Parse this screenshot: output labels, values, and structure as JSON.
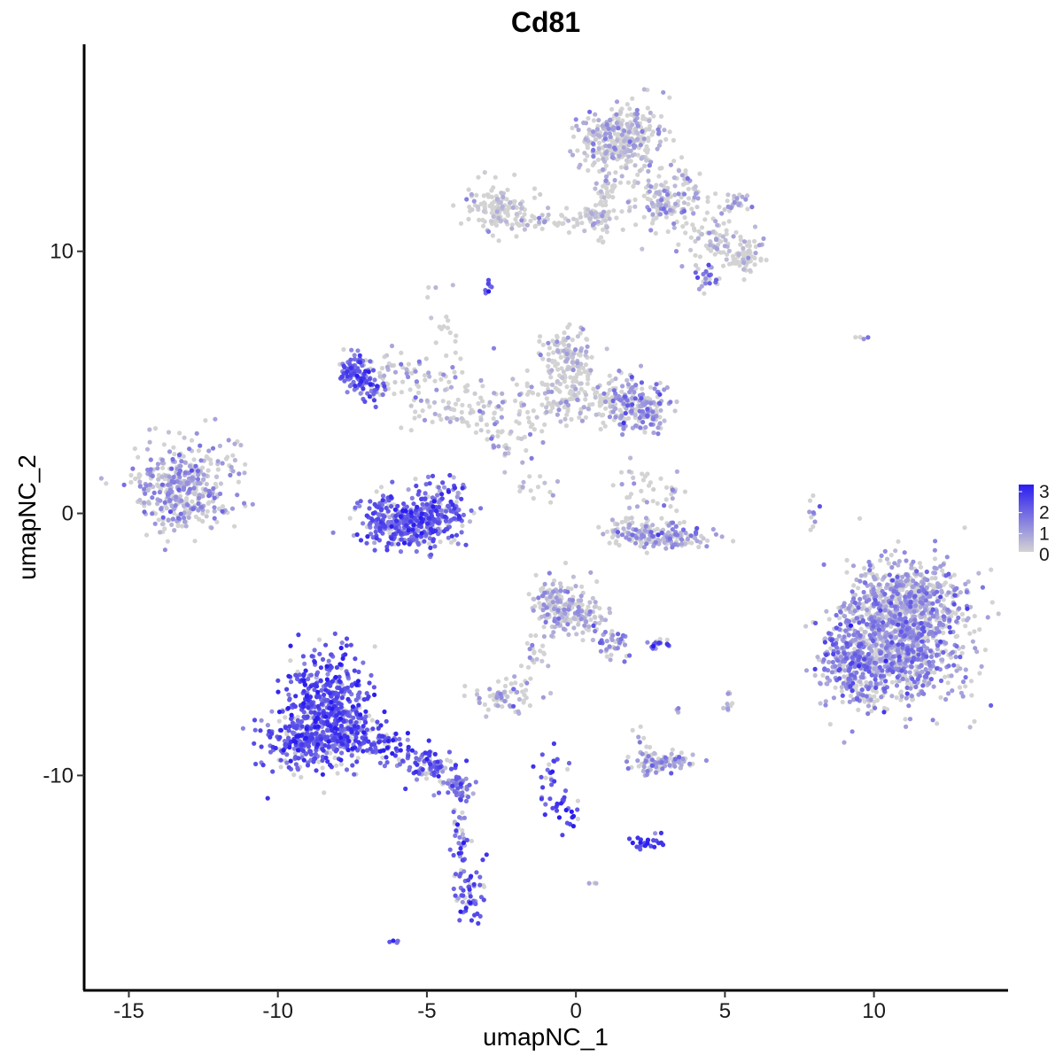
{
  "chart_data": {
    "type": "scatter",
    "title": "Cd81",
    "xlabel": "umapNC_1",
    "ylabel": "umapNC_2",
    "xlim": [
      -16.5,
      14.5
    ],
    "ylim": [
      -18.2,
      17.9
    ],
    "xticks": [
      -15,
      -10,
      -5,
      0,
      5,
      10
    ],
    "yticks": [
      -10,
      0,
      10
    ],
    "xtick_labels": [
      "-15",
      "-10",
      "-5",
      "0",
      "5",
      "10"
    ],
    "ytick_labels": [
      "-10",
      "0",
      "10"
    ],
    "grid": false,
    "legend": {
      "placement": "right",
      "type": "colorbar",
      "range": [
        0,
        3
      ],
      "ticks": [
        "3",
        "2",
        "1",
        "0"
      ]
    },
    "color_scale": {
      "low": "#d3d3d3",
      "high": "#2b1df0"
    },
    "clusters": [
      {
        "cx": -13.3,
        "cy": 1.0,
        "sx": 0.75,
        "sy": 0.8,
        "n": 380,
        "expr": 0.75
      },
      {
        "cx": -12.0,
        "cy": 1.6,
        "sx": 0.5,
        "sy": 0.8,
        "n": 40,
        "expr": 0.55
      },
      {
        "cx": -8.4,
        "cy": -7.2,
        "sx": 0.7,
        "sy": 1.0,
        "n": 420,
        "expr": 2.15
      },
      {
        "cx": -9.2,
        "cy": -8.8,
        "sx": 0.7,
        "sy": 0.5,
        "n": 220,
        "expr": 2.0
      },
      {
        "cx": -7.6,
        "cy": -8.3,
        "sx": 0.55,
        "sy": 0.55,
        "n": 130,
        "expr": 2.0
      },
      {
        "cx": -6.2,
        "cy": -8.9,
        "sx": 0.55,
        "sy": 0.25,
        "n": 60,
        "expr": 2.2
      },
      {
        "cx": -4.9,
        "cy": -9.6,
        "sx": 0.45,
        "sy": 0.3,
        "n": 90,
        "expr": 1.8
      },
      {
        "cx": -4.0,
        "cy": -10.4,
        "sx": 0.3,
        "sy": 0.25,
        "n": 45,
        "expr": 1.6
      },
      {
        "cx": -3.9,
        "cy": -12.2,
        "sx": 0.15,
        "sy": 0.9,
        "n": 40,
        "expr": 1.7
      },
      {
        "cx": -3.6,
        "cy": -14.6,
        "sx": 0.25,
        "sy": 0.5,
        "n": 55,
        "expr": 1.9
      },
      {
        "cx": -6.1,
        "cy": -16.3,
        "sx": 0.1,
        "sy": 0.06,
        "n": 5,
        "expr": 1.6
      },
      {
        "cx": -6.4,
        "cy": -0.2,
        "sx": 0.45,
        "sy": 0.55,
        "n": 130,
        "expr": 1.8
      },
      {
        "cx": -5.5,
        "cy": -0.4,
        "sx": 0.6,
        "sy": 0.45,
        "n": 220,
        "expr": 1.95
      },
      {
        "cx": -4.5,
        "cy": 0.1,
        "sx": 0.45,
        "sy": 0.6,
        "n": 150,
        "expr": 1.85
      },
      {
        "cx": -7.4,
        "cy": 5.4,
        "sx": 0.28,
        "sy": 0.35,
        "n": 90,
        "expr": 1.9
      },
      {
        "cx": -6.9,
        "cy": 4.7,
        "sx": 0.22,
        "sy": 0.3,
        "n": 40,
        "expr": 1.8
      },
      {
        "cx": -6.0,
        "cy": 5.5,
        "sx": 0.4,
        "sy": 0.35,
        "n": 30,
        "expr": 0.4
      },
      {
        "cx": -4.8,
        "cy": 4.5,
        "sx": 0.8,
        "sy": 0.8,
        "n": 50,
        "expr": 0.6
      },
      {
        "cx": -3.3,
        "cy": 4.0,
        "sx": 0.7,
        "sy": 0.5,
        "n": 60,
        "expr": 0.15
      },
      {
        "cx": -4.5,
        "cy": 6.6,
        "sx": 0.3,
        "sy": 0.9,
        "n": 25,
        "expr": 0.05
      },
      {
        "cx": -1.1,
        "cy": 4.3,
        "sx": 0.7,
        "sy": 0.5,
        "n": 80,
        "expr": 0.25
      },
      {
        "cx": -0.3,
        "cy": 5.9,
        "sx": 0.45,
        "sy": 0.55,
        "n": 120,
        "expr": 0.2
      },
      {
        "cx": 0.5,
        "cy": 4.4,
        "sx": 0.6,
        "sy": 0.5,
        "n": 90,
        "expr": 0.3
      },
      {
        "cx": 1.9,
        "cy": 4.2,
        "sx": 0.45,
        "sy": 0.5,
        "n": 140,
        "expr": 0.9
      },
      {
        "cx": 2.5,
        "cy": 3.8,
        "sx": 0.35,
        "sy": 0.35,
        "n": 50,
        "expr": 0.95
      },
      {
        "cx": -2.2,
        "cy": 2.6,
        "sx": 0.5,
        "sy": 0.4,
        "n": 30,
        "expr": 0.55
      },
      {
        "cx": -1.2,
        "cy": 1.0,
        "sx": 0.45,
        "sy": 0.35,
        "n": 15,
        "expr": 0.35
      },
      {
        "cx": -2.9,
        "cy": 8.6,
        "sx": 0.08,
        "sy": 0.15,
        "n": 8,
        "expr": 2.3
      },
      {
        "cx": -2.5,
        "cy": 11.6,
        "sx": 0.55,
        "sy": 0.5,
        "n": 130,
        "expr": 0.05
      },
      {
        "cx": -0.8,
        "cy": 11.2,
        "sx": 0.7,
        "sy": 0.2,
        "n": 40,
        "expr": 0.05
      },
      {
        "cx": 0.7,
        "cy": 11.2,
        "sx": 0.3,
        "sy": 0.35,
        "n": 60,
        "expr": 0.05
      },
      {
        "cx": 1.5,
        "cy": 14.3,
        "sx": 0.7,
        "sy": 0.6,
        "n": 330,
        "expr": 0.35
      },
      {
        "cx": 1.1,
        "cy": 12.4,
        "sx": 0.25,
        "sy": 0.6,
        "n": 50,
        "expr": 0.1
      },
      {
        "cx": 3.1,
        "cy": 12.0,
        "sx": 0.7,
        "sy": 0.6,
        "n": 160,
        "expr": 0.45
      },
      {
        "cx": 4.7,
        "cy": 10.4,
        "sx": 0.5,
        "sy": 0.5,
        "n": 70,
        "expr": 0.25
      },
      {
        "cx": 5.7,
        "cy": 9.8,
        "sx": 0.3,
        "sy": 0.3,
        "n": 60,
        "expr": 0.05
      },
      {
        "cx": 4.4,
        "cy": 9.0,
        "sx": 0.3,
        "sy": 0.25,
        "n": 25,
        "expr": 1.4
      },
      {
        "cx": 5.4,
        "cy": 11.8,
        "sx": 0.3,
        "sy": 0.15,
        "n": 25,
        "expr": 0.7
      },
      {
        "cx": 9.6,
        "cy": 6.7,
        "sx": 0.12,
        "sy": 0.06,
        "n": 4,
        "expr": 1.6
      },
      {
        "cx": 2.3,
        "cy": 1.2,
        "sx": 0.45,
        "sy": 0.4,
        "n": 25,
        "expr": 0.15
      },
      {
        "cx": 3.3,
        "cy": 0.8,
        "sx": 0.2,
        "sy": 0.35,
        "n": 15,
        "expr": 0.7
      },
      {
        "cx": 2.8,
        "cy": -0.9,
        "sx": 0.85,
        "sy": 0.25,
        "n": 160,
        "expr": 0.75
      },
      {
        "cx": 1.9,
        "cy": -0.4,
        "sx": 0.5,
        "sy": 0.2,
        "n": 30,
        "expr": 0.1
      },
      {
        "cx": 8.0,
        "cy": -0.1,
        "sx": 0.1,
        "sy": 0.4,
        "n": 10,
        "expr": 1.3
      },
      {
        "cx": 10.9,
        "cy": -4.7,
        "sx": 1.05,
        "sy": 1.25,
        "n": 1100,
        "expr": 0.95
      },
      {
        "cx": 9.3,
        "cy": -5.7,
        "sx": 0.55,
        "sy": 0.8,
        "n": 280,
        "expr": 1.25
      },
      {
        "cx": 11.4,
        "cy": -3.2,
        "sx": 0.7,
        "sy": 0.6,
        "n": 220,
        "expr": 0.6
      },
      {
        "cx": -0.7,
        "cy": -3.4,
        "sx": 0.45,
        "sy": 0.5,
        "n": 130,
        "expr": 0.7
      },
      {
        "cx": 0.2,
        "cy": -4.0,
        "sx": 0.5,
        "sy": 0.4,
        "n": 90,
        "expr": 0.65
      },
      {
        "cx": 1.1,
        "cy": -4.9,
        "sx": 0.35,
        "sy": 0.35,
        "n": 40,
        "expr": 1.1
      },
      {
        "cx": -1.3,
        "cy": -5.2,
        "sx": 0.2,
        "sy": 0.35,
        "n": 20,
        "expr": 0.5
      },
      {
        "cx": -1.9,
        "cy": -6.5,
        "sx": 0.2,
        "sy": 0.4,
        "n": 10,
        "expr": 0.3
      },
      {
        "cx": -2.5,
        "cy": -7.0,
        "sx": 0.5,
        "sy": 0.3,
        "n": 60,
        "expr": 0.5
      },
      {
        "cx": 2.8,
        "cy": -5.0,
        "sx": 0.18,
        "sy": 0.07,
        "n": 18,
        "expr": 2.1
      },
      {
        "cx": 2.8,
        "cy": -9.5,
        "sx": 0.5,
        "sy": 0.2,
        "n": 100,
        "expr": 0.8
      },
      {
        "cx": 2.2,
        "cy": -8.7,
        "sx": 0.15,
        "sy": 0.3,
        "n": 10,
        "expr": 0.9
      },
      {
        "cx": -0.9,
        "cy": -10.1,
        "sx": 0.25,
        "sy": 0.7,
        "n": 30,
        "expr": 2.1
      },
      {
        "cx": -0.2,
        "cy": -11.4,
        "sx": 0.25,
        "sy": 0.35,
        "n": 20,
        "expr": 2.2
      },
      {
        "cx": 2.4,
        "cy": -12.5,
        "sx": 0.25,
        "sy": 0.15,
        "n": 25,
        "expr": 2.3
      },
      {
        "cx": 5.1,
        "cy": -7.3,
        "sx": 0.1,
        "sy": 0.25,
        "n": 10,
        "expr": 0.05
      },
      {
        "cx": 3.4,
        "cy": -7.6,
        "sx": 0.05,
        "sy": 0.1,
        "n": 3,
        "expr": 0.9
      },
      {
        "cx": 0.6,
        "cy": -14.1,
        "sx": 0.07,
        "sy": 0.05,
        "n": 3,
        "expr": 0.6
      }
    ]
  }
}
